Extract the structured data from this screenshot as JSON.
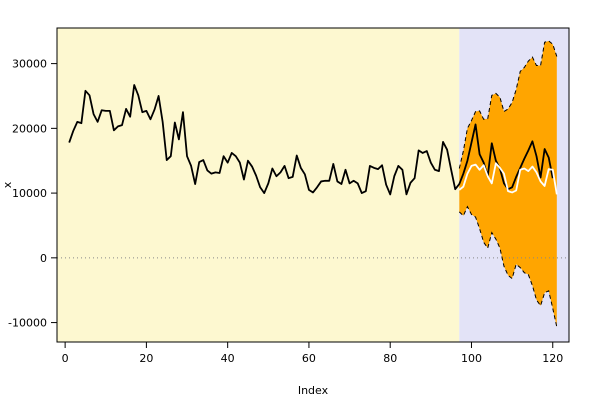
{
  "chart_data": {
    "type": "line",
    "title": "",
    "xlabel": "Index",
    "ylabel": "x",
    "xlim": [
      -2,
      124
    ],
    "ylim": [
      -13000,
      35500
    ],
    "x_ticks": [
      0,
      20,
      40,
      60,
      80,
      100,
      120
    ],
    "y_ticks": [
      -10000,
      0,
      10000,
      20000,
      30000
    ],
    "grid": false,
    "legend": "none",
    "reference_line": {
      "y": 0,
      "style": "dotted"
    },
    "regions": [
      {
        "name": "history",
        "x_from": -2,
        "x_to": 97,
        "color": "#fdf8d0"
      },
      {
        "name": "forecast",
        "x_from": 97,
        "x_to": 124,
        "color": "#e3e3f7"
      }
    ],
    "colors": {
      "line": "#000000",
      "forecast_line": "#ffffff",
      "band": "#ffa500",
      "zero_line": "#888888",
      "frame": "#000000"
    },
    "series": [
      {
        "role": "observed",
        "x_start": 1,
        "values": [
          17800,
          19600,
          21000,
          20800,
          25800,
          25100,
          22200,
          21000,
          22800,
          22700,
          22700,
          19700,
          20300,
          20500,
          23000,
          21800,
          26700,
          25100,
          22500,
          22700,
          21400,
          22900,
          25000,
          21000,
          15100,
          15700,
          20900,
          18300,
          22500,
          15700,
          14200,
          11400,
          14800,
          15100,
          13500,
          13000,
          13200,
          13100,
          15700,
          14700,
          16200,
          15700,
          14700,
          12100,
          15000,
          14100,
          12700,
          10900,
          10000,
          11500,
          13800,
          12600,
          13200,
          14200,
          12300,
          12500,
          15800,
          13900,
          12900,
          10500,
          10100,
          10900,
          11800,
          11900,
          11900,
          14500,
          11800,
          11400,
          13600,
          11500,
          11900,
          11500,
          10000,
          10300,
          14200,
          13900,
          13700,
          14300,
          11300,
          9800,
          12600,
          14200,
          13600,
          9800,
          11600,
          12300,
          16600,
          16200,
          16500,
          14700,
          13600,
          13400,
          17900,
          16700,
          13600,
          10600,
          11400,
          13000,
          15000,
          17800,
          20600,
          16000,
          14700,
          12600,
          17700,
          15000,
          13800,
          11500,
          10600,
          10900,
          12500,
          13900,
          15300,
          16600,
          18000,
          15700,
          12400,
          16800,
          15500,
          12300
        ]
      },
      {
        "role": "forecast",
        "x_start": 97,
        "values": [
          10500,
          11000,
          13000,
          14200,
          14400,
          13600,
          14300,
          12600,
          11500,
          14600,
          13900,
          13000,
          10300,
          10100,
          10400,
          13600,
          13800,
          13400,
          14100,
          13200,
          11800,
          11100,
          13700,
          13600,
          9800
        ]
      },
      {
        "role": "upper_bound",
        "x_start": 97,
        "values": [
          13800,
          16500,
          20000,
          21200,
          22600,
          22700,
          21400,
          21500,
          25100,
          25400,
          24800,
          22600,
          23000,
          24000,
          26000,
          28800,
          29400,
          30400,
          31000,
          29700,
          29700,
          33300,
          33500,
          33000,
          31100
        ]
      },
      {
        "role": "lower_bound",
        "x_start": 97,
        "values": [
          7100,
          6500,
          7900,
          6700,
          6300,
          4500,
          2400,
          1500,
          3900,
          2900,
          1500,
          -1300,
          -2700,
          -3200,
          -1000,
          -1500,
          -2300,
          -2600,
          -4300,
          -6500,
          -7400,
          -5400,
          -5100,
          -7800,
          -10700
        ]
      }
    ]
  }
}
